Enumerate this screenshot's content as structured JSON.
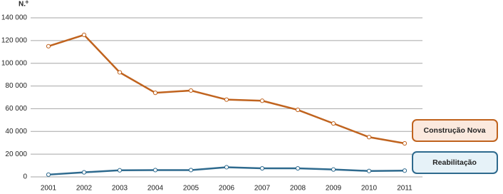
{
  "chart_data": {
    "type": "line",
    "y_axis_label": "N.º",
    "categories": [
      "2001",
      "2002",
      "2003",
      "2004",
      "2005",
      "2006",
      "2007",
      "2008",
      "2009",
      "2010",
      "2011"
    ],
    "series": [
      {
        "name": "Construção Nova",
        "color": "#c0631e",
        "values": [
          115000,
          125000,
          92000,
          74000,
          76000,
          68000,
          67000,
          59000,
          47000,
          35000,
          29500
        ]
      },
      {
        "name": "Reabilitação",
        "color": "#2e6a8e",
        "values": [
          2000,
          4000,
          5800,
          6000,
          6000,
          8500,
          7500,
          7500,
          6500,
          5200,
          5500
        ]
      }
    ],
    "ylim": [
      0,
      140000
    ],
    "yticks": [
      0,
      {
        "value": 20000,
        "label": "20 000"
      },
      {
        "value": 40000,
        "label": "40 000"
      },
      {
        "value": 60000,
        "label": "60 000"
      },
      {
        "value": 80000,
        "label": "80 000"
      },
      {
        "value": 100000,
        "label": "100 000"
      },
      {
        "value": 120000,
        "label": "120 000"
      },
      {
        "value": 140000,
        "label": "140 000"
      }
    ],
    "grid": true,
    "legend": "right"
  }
}
